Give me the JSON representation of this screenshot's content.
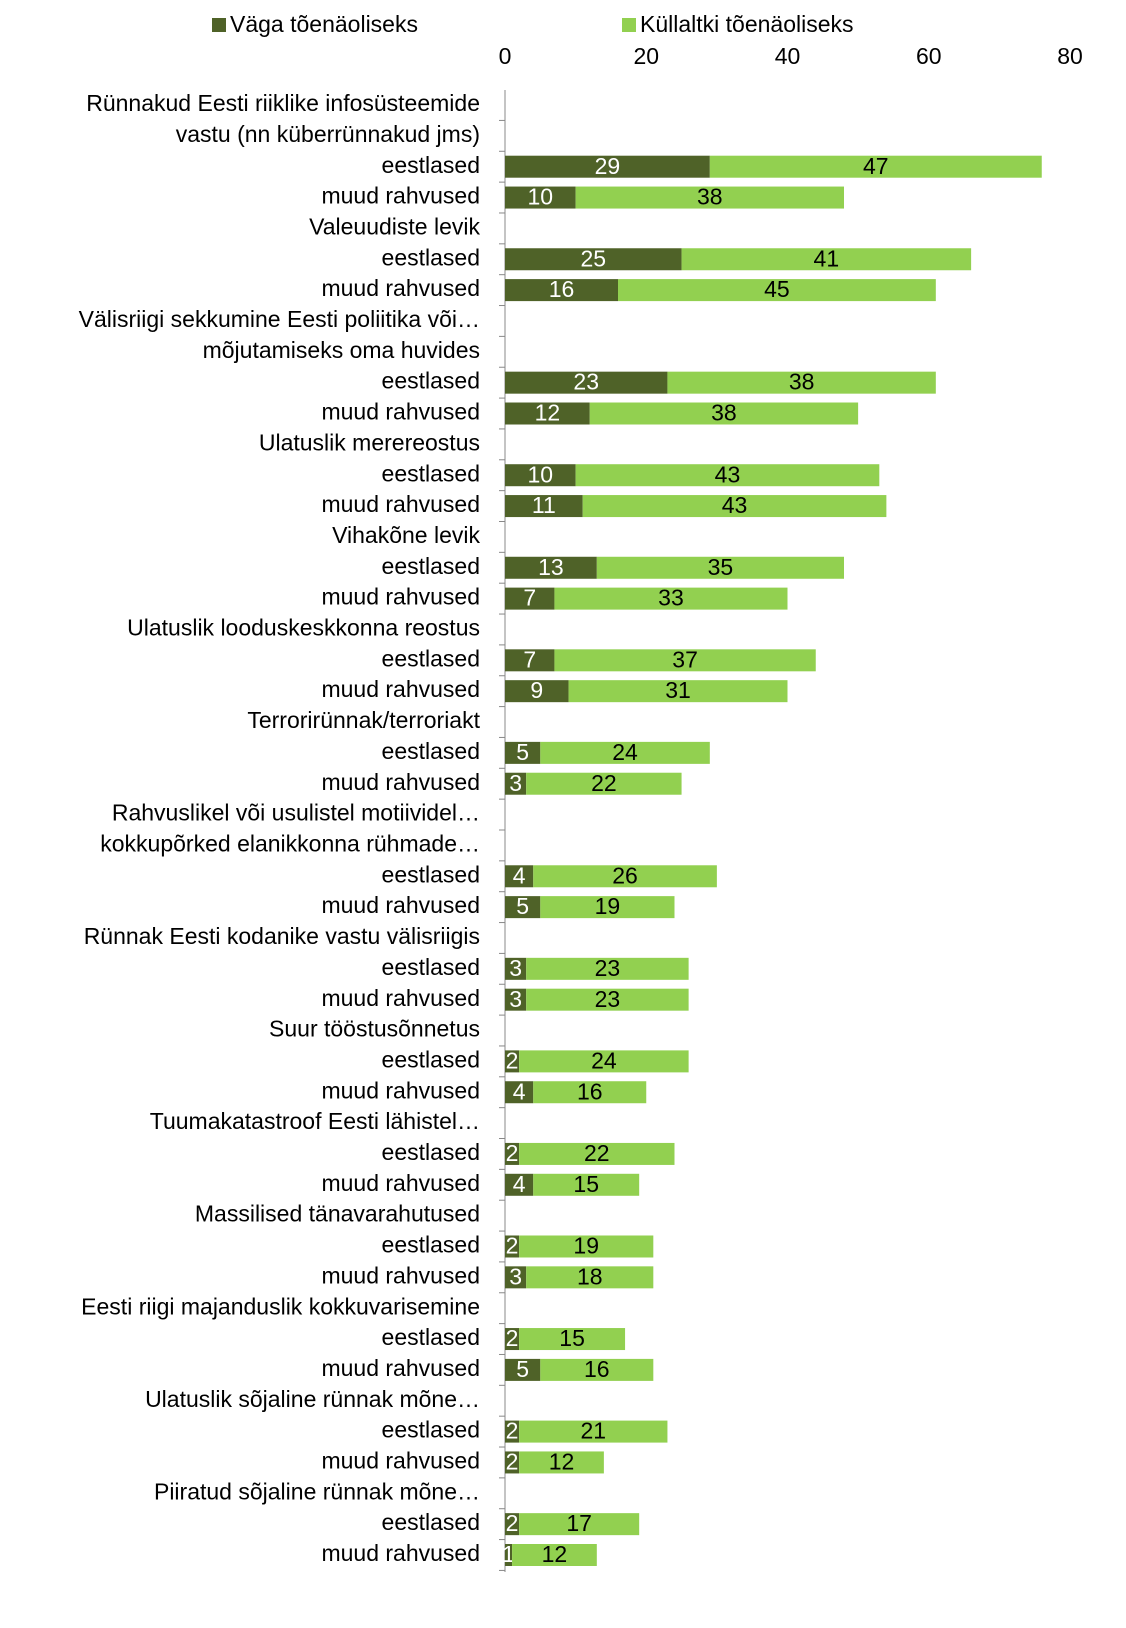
{
  "chart_data": {
    "type": "stacked_bar_horizontal",
    "categories": [
      "Rünnakud Eesti riiklike infosüsteemide",
      "vastu (nn küberrünnakud jms)",
      "eestlased",
      "muud rahvused",
      "Valeuudiste levik",
      "eestlased",
      "muud rahvused",
      "Välisriigi sekkumine Eesti poliitika või…",
      "mõjutamiseks oma huvides",
      "eestlased",
      "muud rahvused",
      "Ulatuslik merereostus",
      "eestlased",
      "muud rahvused",
      "Vihakõne levik",
      "eestlased",
      "muud rahvused",
      "Ulatuslik looduskeskkonna reostus",
      "eestlased",
      "muud rahvused",
      "Terrorirünnak/terroriakt",
      "eestlased",
      "muud rahvused",
      "Rahvuslikel või usulistel motiividel…",
      "kokkupõrked elanikkonna rühmade…",
      "eestlased",
      "muud rahvused",
      "Rünnak Eesti kodanike vastu välisriigis",
      "eestlased",
      "muud rahvused",
      "Suur tööstusõnnetus",
      "eestlased",
      "muud rahvused",
      "Tuumakatastroof Eesti lähistel…",
      "eestlased",
      "muud rahvused",
      "Massilised tänavarahutused",
      "eestlased",
      "muud rahvused",
      "Eesti riigi majanduslik kokkuvarisemine",
      "eestlased",
      "muud rahvused",
      "Ulatuslik sõjaline rünnak mõne…",
      "eestlased",
      "muud rahvused",
      "Piiratud sõjaline rünnak mõne…",
      "eestlased",
      "muud rahvused"
    ],
    "series": [
      {
        "name": "Väga tõenäoliseks",
        "color": "#4f6228",
        "label_color": "#ffffff",
        "values": [
          null,
          null,
          29,
          10,
          null,
          25,
          16,
          null,
          null,
          23,
          12,
          null,
          10,
          11,
          null,
          13,
          7,
          null,
          7,
          9,
          null,
          5,
          3,
          null,
          null,
          4,
          5,
          null,
          3,
          3,
          null,
          2,
          4,
          null,
          2,
          4,
          null,
          2,
          3,
          null,
          2,
          5,
          null,
          2,
          2,
          null,
          2,
          1
        ]
      },
      {
        "name": "Küllaltki tõenäoliseks",
        "color": "#92d050",
        "label_color": "#000000",
        "values": [
          null,
          null,
          47,
          38,
          null,
          41,
          45,
          null,
          null,
          38,
          38,
          null,
          43,
          43,
          null,
          35,
          33,
          null,
          37,
          31,
          null,
          24,
          22,
          null,
          null,
          26,
          19,
          null,
          23,
          23,
          null,
          24,
          16,
          null,
          22,
          15,
          null,
          19,
          18,
          null,
          15,
          16,
          null,
          21,
          12,
          null,
          17,
          12
        ]
      }
    ],
    "xlim": [
      0,
      80
    ],
    "xticks": [
      0,
      20,
      40,
      60,
      80
    ],
    "grid": false,
    "legend": "top",
    "x_axis_position": "top"
  }
}
